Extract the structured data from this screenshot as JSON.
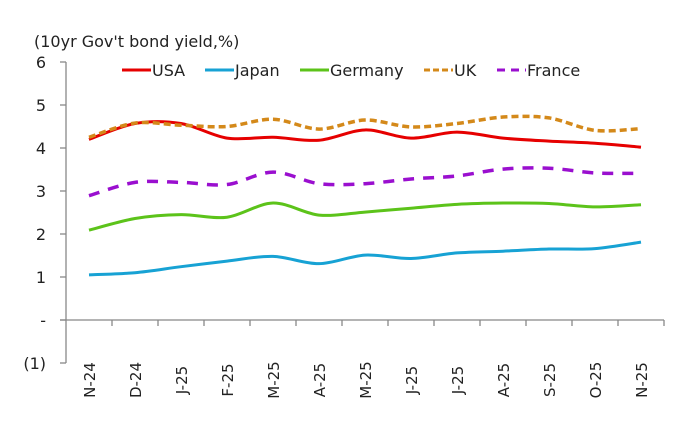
{
  "chart_data": {
    "type": "line",
    "title": "(10yr Gov't bond yield,%)",
    "xlabel": "",
    "ylabel": "(10yr Gov't bond yield,%)",
    "ylim": [
      -1,
      6
    ],
    "yticks": [
      -1,
      0,
      1,
      2,
      3,
      4,
      5,
      6
    ],
    "ytick_labels": [
      "(1)",
      "-",
      "1",
      "2",
      "3",
      "4",
      "5",
      "6"
    ],
    "grid": false,
    "legend_position": "top",
    "categories": [
      "N-24",
      "D-24",
      "J-25",
      "F-25",
      "M-25",
      "A-25",
      "M-25",
      "J-25",
      "J-25",
      "A-25",
      "S-25",
      "O-25",
      "N-25"
    ],
    "series": [
      {
        "name": "USA",
        "color": "#e60000",
        "style": "solid",
        "values": [
          4.2,
          4.57,
          4.57,
          4.23,
          4.25,
          4.18,
          4.42,
          4.23,
          4.37,
          4.23,
          4.16,
          4.11,
          4.02
        ]
      },
      {
        "name": "Japan",
        "color": "#17a2d4",
        "style": "solid",
        "values": [
          1.05,
          1.1,
          1.24,
          1.37,
          1.48,
          1.31,
          1.51,
          1.43,
          1.56,
          1.6,
          1.65,
          1.66,
          1.81
        ]
      },
      {
        "name": "Germany",
        "color": "#5cc31a",
        "style": "solid",
        "values": [
          2.09,
          2.36,
          2.45,
          2.39,
          2.72,
          2.44,
          2.51,
          2.6,
          2.69,
          2.72,
          2.71,
          2.63,
          2.68
        ]
      },
      {
        "name": "UK",
        "color": "#d4891a",
        "style": "dash",
        "values": [
          4.25,
          4.58,
          4.53,
          4.5,
          4.67,
          4.44,
          4.65,
          4.49,
          4.57,
          4.72,
          4.7,
          4.41,
          4.45
        ]
      },
      {
        "name": "France",
        "color": "#9a0fcf",
        "style": "longdash",
        "values": [
          2.89,
          3.2,
          3.2,
          3.15,
          3.44,
          3.17,
          3.17,
          3.28,
          3.35,
          3.51,
          3.53,
          3.42,
          3.41
        ]
      }
    ]
  }
}
